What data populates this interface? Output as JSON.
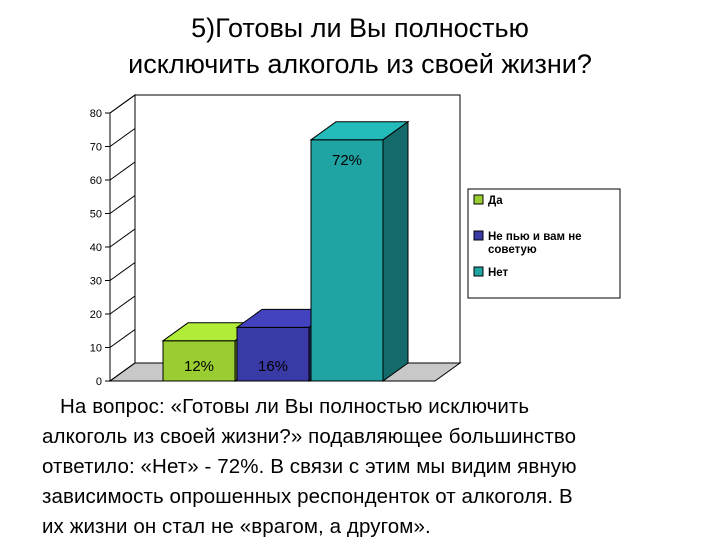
{
  "title_lines": [
    "5)Готовы ли Вы полностью",
    "исключить алкоголь из своей жизни?"
  ],
  "chart_data": {
    "type": "bar",
    "categories": [
      "Да",
      "Не пью и вам не советую",
      "Нет"
    ],
    "values": [
      12,
      16,
      72
    ],
    "data_labels": [
      "12%",
      "16%",
      "72%"
    ],
    "ylim": [
      0,
      80
    ],
    "yticks": [
      "0",
      "10",
      "20",
      "30",
      "40",
      "50",
      "60",
      "70",
      "80"
    ],
    "legend": {
      "placement": "right",
      "entries": [
        {
          "lines": [
            "Да"
          ],
          "color": "#9acd32"
        },
        {
          "lines": [
            "Не пью и вам не",
            "советую"
          ],
          "color": "#3a3aa6"
        },
        {
          "lines": [
            "Нет"
          ],
          "color": "#1fa3a3"
        }
      ]
    },
    "title": "",
    "xlabel": "",
    "ylabel": ""
  },
  "paragraph_lines": [
    "На вопрос: «Готовы ли Вы полностью исключить",
    "алкоголь из своей жизни?» подавляющее большинство",
    "ответило: «Нет» - 72%. В связи с этим мы видим явную",
    "зависимость опрошенных респонденток от алкоголя. В",
    "их жизни он стал не «врагом, а другом»."
  ]
}
